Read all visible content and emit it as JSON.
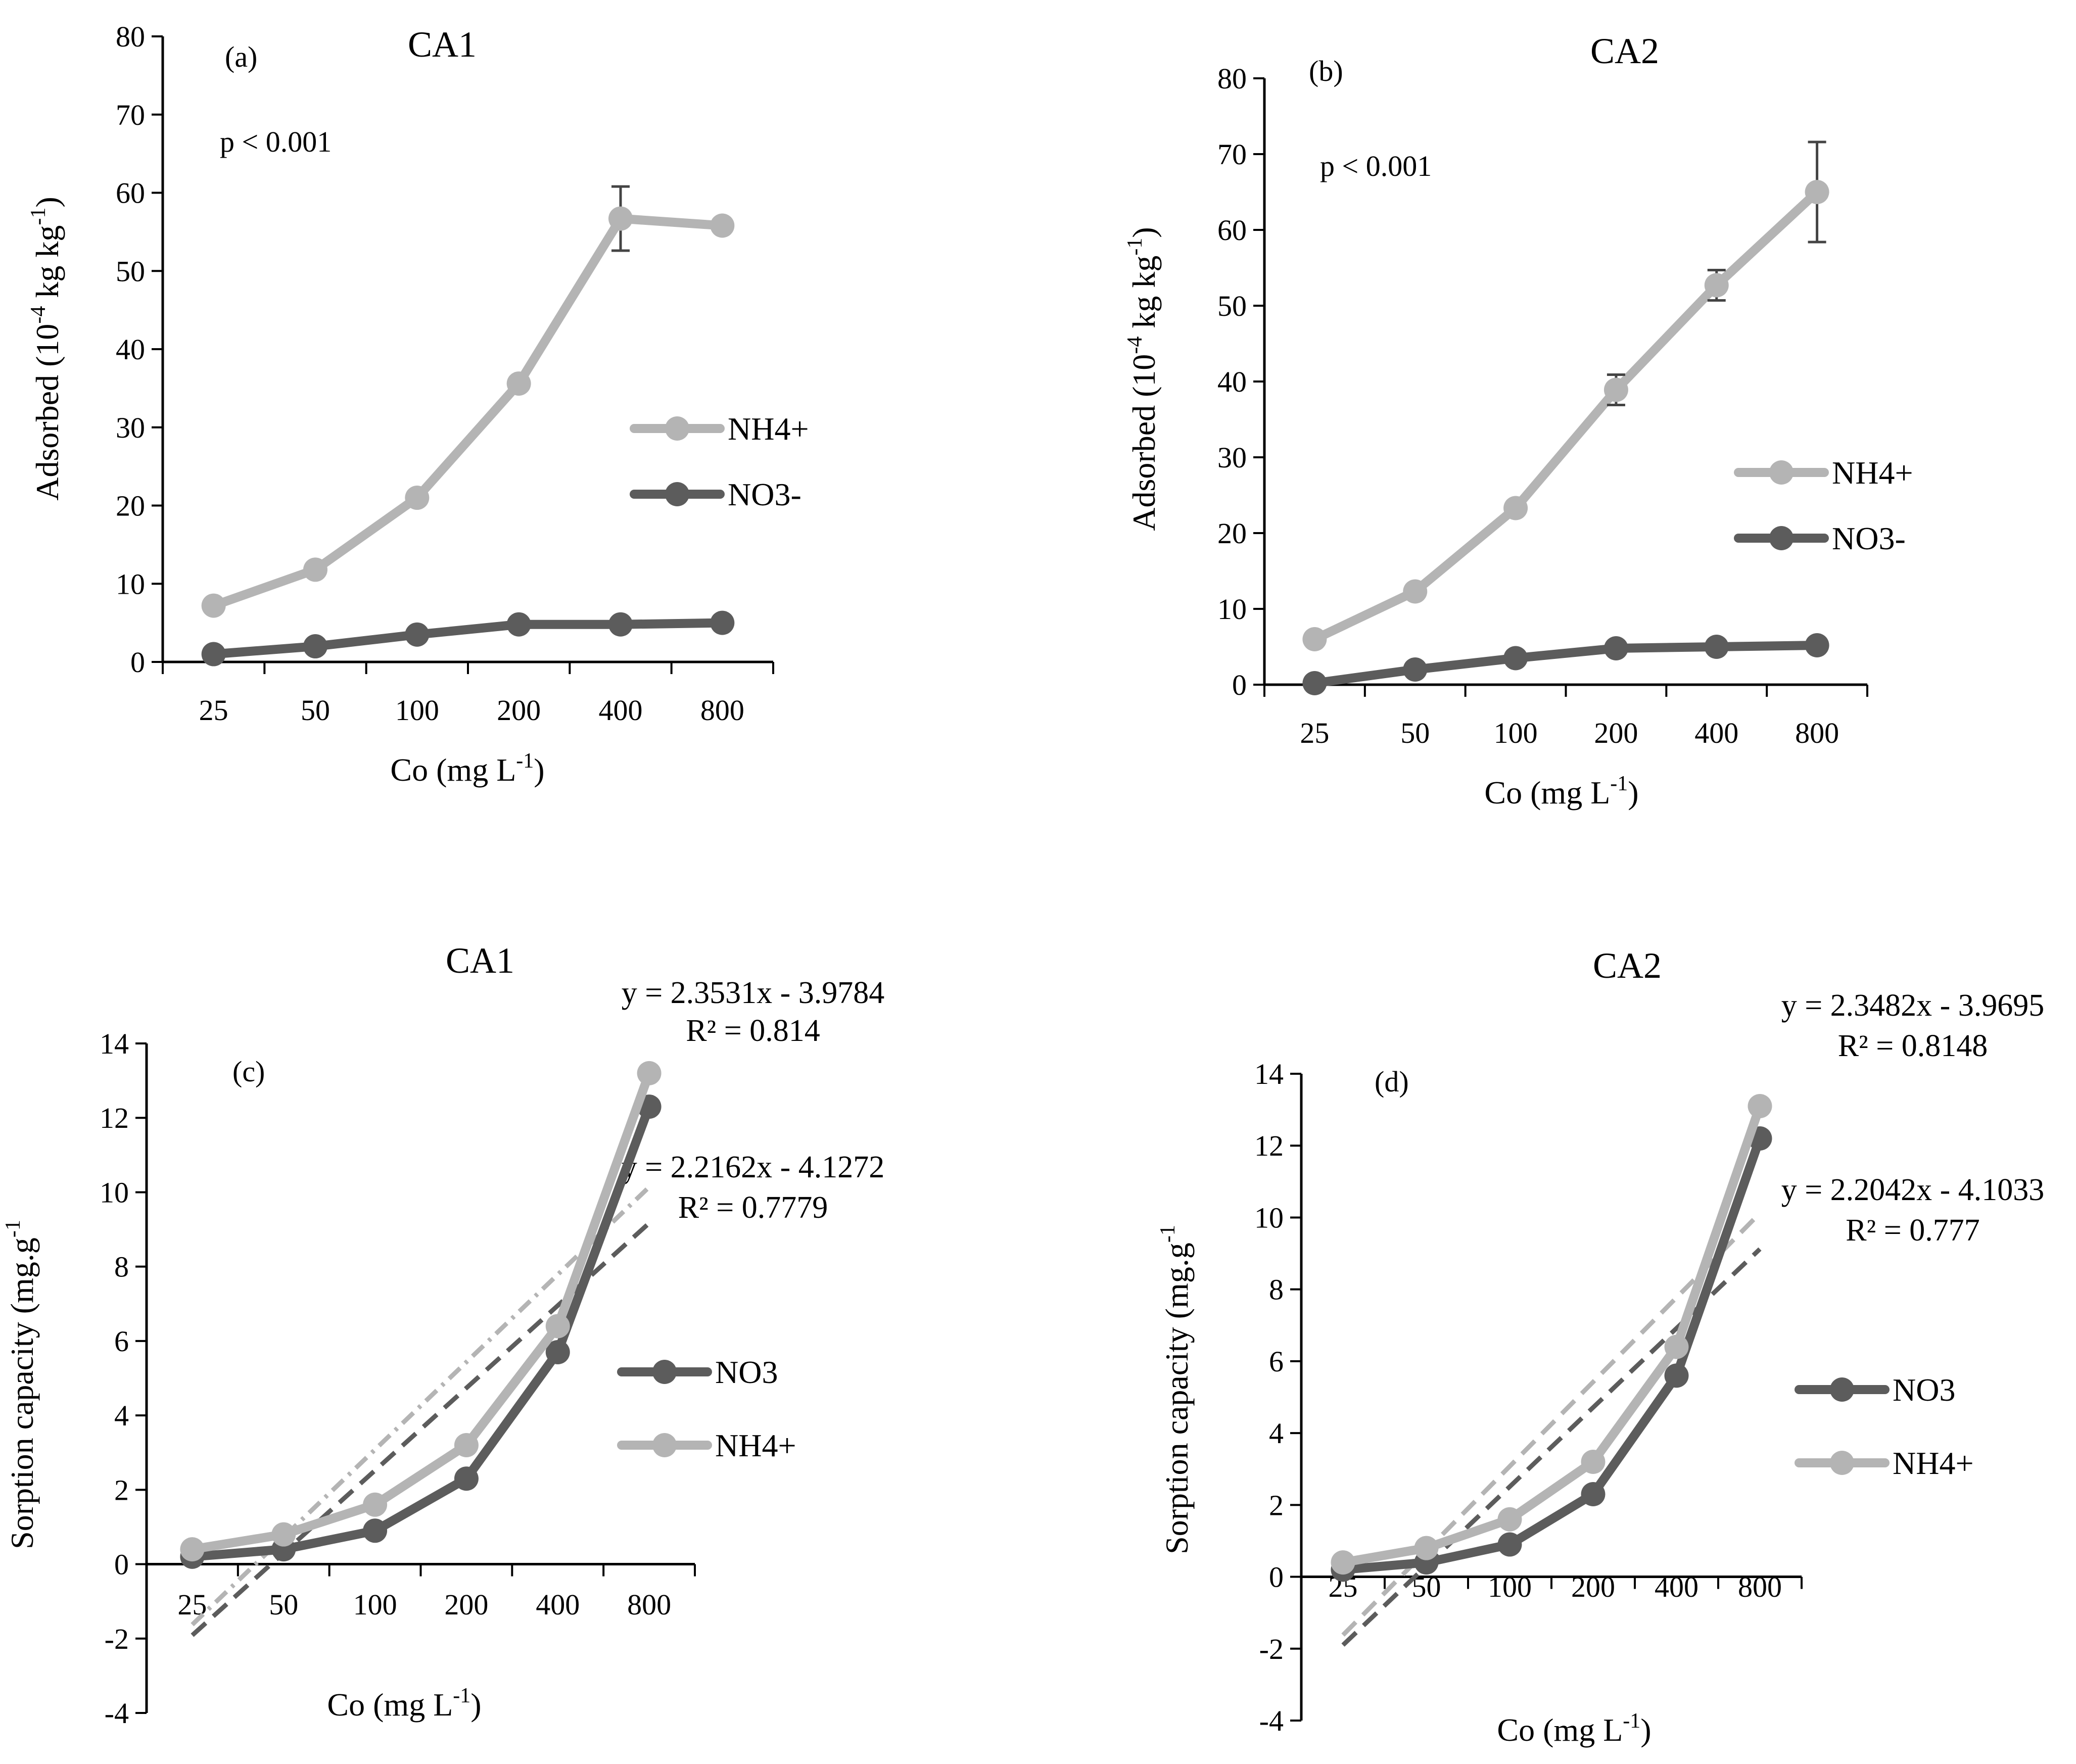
{
  "colors": {
    "nh4": "#b4b4b4",
    "no3": "#5c5c5c",
    "axis": "#000000",
    "trend_no3": "#5c5c5c",
    "trend_nh4": "#b4b4b4"
  },
  "chart_data": [
    {
      "panel": "(a)",
      "type": "line",
      "title": "CA1",
      "annotation": "p < 0.001",
      "xlabel": "Co (mg L-1)",
      "xlabel_base": "Co (mg L",
      "xlabel_sup": "-1",
      "xlabel_tail": ")",
      "ylabel": "Adsorbed (10-4 kg kg-1)",
      "ylabel_parts": {
        "a": "Adsorbed (10",
        "b": "-4",
        "c": " kg kg",
        "d": "-1",
        "e": ")"
      },
      "categories": [
        "25",
        "50",
        "100",
        "200",
        "400",
        "800"
      ],
      "ylim": [
        0,
        80
      ],
      "yticks": [
        "0",
        "10",
        "20",
        "30",
        "40",
        "50",
        "60",
        "70",
        "80"
      ],
      "legend_position": "right",
      "series": [
        {
          "name": "NH4+",
          "values": [
            7.2,
            11.8,
            21.0,
            35.6,
            56.7,
            55.8
          ],
          "errors": [
            0,
            0,
            0,
            0,
            4.1,
            0.8
          ]
        },
        {
          "name": "NO3-",
          "values": [
            1.0,
            2.0,
            3.5,
            4.8,
            4.8,
            5.0
          ],
          "errors": [
            0,
            0,
            0,
            0,
            0,
            0
          ]
        }
      ]
    },
    {
      "panel": "(b)",
      "type": "line",
      "title": "CA2",
      "annotation": "p < 0.001",
      "xlabel": "Co (mg L-1)",
      "xlabel_base": "Co (mg L",
      "xlabel_sup": "-1",
      "xlabel_tail": ")",
      "ylabel": "Adsorbed (10-4 kg kg-1)",
      "ylabel_parts": {
        "a": "Adsorbed (10",
        "b": "-4",
        "c": " kg kg",
        "d": "-1",
        "e": ")"
      },
      "categories": [
        "25",
        "50",
        "100",
        "200",
        "400",
        "800"
      ],
      "ylim": [
        0,
        80
      ],
      "yticks": [
        "0",
        "10",
        "20",
        "30",
        "40",
        "50",
        "60",
        "70",
        "80"
      ],
      "legend_position": "right",
      "series": [
        {
          "name": "NH4+",
          "values": [
            6.0,
            12.3,
            23.3,
            38.9,
            52.7,
            65.0
          ],
          "errors": [
            0,
            0,
            0.7,
            2.0,
            2.0,
            6.6
          ]
        },
        {
          "name": "NO3-",
          "values": [
            0.2,
            2.0,
            3.5,
            4.8,
            5.0,
            5.2
          ],
          "errors": [
            0,
            0,
            0,
            0,
            0,
            0
          ]
        }
      ]
    },
    {
      "panel": "(c)",
      "type": "line",
      "title": "CA1",
      "xlabel": "Co (mg L-1)",
      "xlabel_base": "Co (mg L",
      "xlabel_sup": "-1",
      "xlabel_tail": ")",
      "ylabel": "Sorption capacity (mg.g-1",
      "ylabel_parts": {
        "a": "Sorption capacity (mg.g",
        "b": "-1"
      },
      "categories": [
        "25",
        "50",
        "100",
        "200",
        "400",
        "800"
      ],
      "ylim": [
        -4,
        14
      ],
      "yticks": [
        "-4",
        "-2",
        "0",
        "2",
        "4",
        "6",
        "8",
        "10",
        "12",
        "14"
      ],
      "legend_position": "right",
      "series": [
        {
          "name": "NO3",
          "values": [
            0.2,
            0.4,
            0.9,
            2.3,
            5.7,
            12.3
          ]
        },
        {
          "name": "NH4+",
          "values": [
            0.4,
            0.8,
            1.6,
            3.2,
            6.4,
            13.2
          ]
        }
      ],
      "trendlines": [
        {
          "equation": "y = 2.3531x - 3.9784",
          "r2": "R² = 0.814",
          "slope": 2.3531,
          "intercept": -3.9784,
          "style": "dashdot",
          "color_key": "trend_nh4"
        },
        {
          "equation": "y = 2.2162x - 4.1272",
          "r2": "R² = 0.7779",
          "slope": 2.2162,
          "intercept": -4.1272,
          "style": "dash",
          "color_key": "trend_no3"
        }
      ]
    },
    {
      "panel": "(d)",
      "type": "line",
      "title": "CA2",
      "xlabel": "Co (mg L-1)",
      "xlabel_base": "Co (mg L",
      "xlabel_sup": "-1",
      "xlabel_tail": ")",
      "ylabel": "Sorption capacity (mg.g-1",
      "ylabel_parts": {
        "a": "Sorption capacity (mg.g",
        "b": "-1"
      },
      "categories": [
        "25",
        "50",
        "100",
        "200",
        "400",
        "800"
      ],
      "ylim": [
        -4,
        14
      ],
      "yticks": [
        "-4",
        "-2",
        "0",
        "2",
        "4",
        "6",
        "8",
        "10",
        "12",
        "14"
      ],
      "legend_position": "right",
      "series": [
        {
          "name": "NO3",
          "values": [
            0.2,
            0.4,
            0.9,
            2.3,
            5.6,
            12.2
          ]
        },
        {
          "name": "NH4+",
          "values": [
            0.4,
            0.8,
            1.6,
            3.2,
            6.4,
            13.1
          ]
        }
      ],
      "trendlines": [
        {
          "equation": "y = 2.3482x - 3.9695",
          "r2": "R² = 0.8148",
          "slope": 2.3482,
          "intercept": -3.9695,
          "style": "dash",
          "color_key": "trend_nh4"
        },
        {
          "equation": "y = 2.2042x - 4.1033",
          "r2": "R² = 0.777",
          "slope": 2.2042,
          "intercept": -4.1033,
          "style": "dash",
          "color_key": "trend_no3"
        }
      ]
    }
  ]
}
